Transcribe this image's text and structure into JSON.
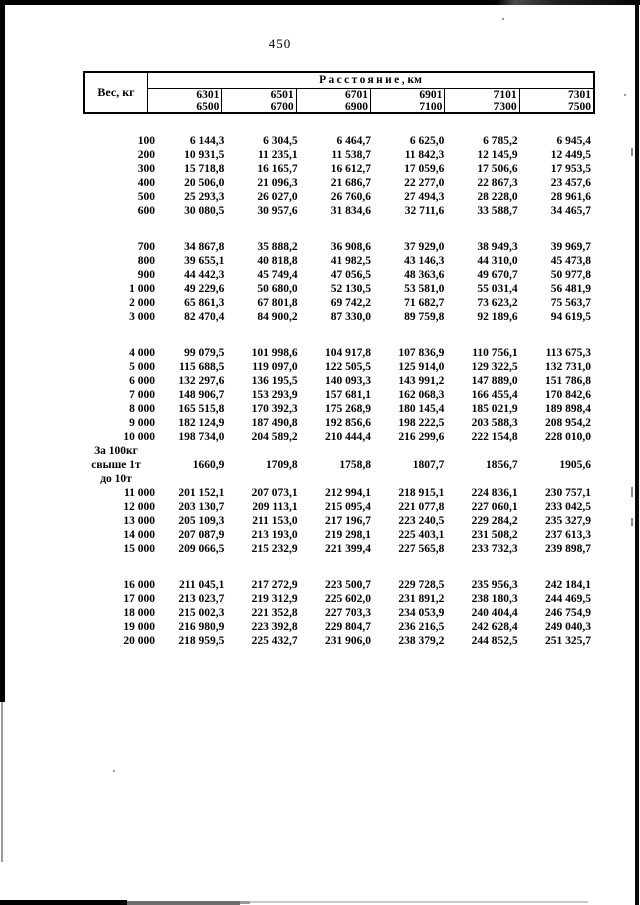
{
  "page": {
    "number": "450"
  },
  "table": {
    "weight_header": "Вес, кг",
    "distance_header": {
      "title": "Расстояние",
      "unit": ", км"
    },
    "columns": [
      {
        "from": "6301",
        "to": "6500"
      },
      {
        "from": "6501",
        "to": "6700"
      },
      {
        "from": "6701",
        "to": "6900"
      },
      {
        "from": "6901",
        "to": "7100"
      },
      {
        "from": "7101",
        "to": "7300"
      },
      {
        "from": "7301",
        "to": "7500"
      }
    ],
    "row_groups": [
      {
        "rows": [
          {
            "weight": "100",
            "values": [
              "6 144,3",
              "6 304,5",
              "6 464,7",
              "6 625,0",
              "6 785,2",
              "6 945,4"
            ]
          },
          {
            "weight": "200",
            "values": [
              "10 931,5",
              "11 235,1",
              "11 538,7",
              "11 842,3",
              "12 145,9",
              "12 449,5"
            ]
          },
          {
            "weight": "300",
            "values": [
              "15 718,8",
              "16 165,7",
              "16 612,7",
              "17 059,6",
              "17 506,6",
              "17 953,5"
            ]
          },
          {
            "weight": "400",
            "values": [
              "20 506,0",
              "21 096,3",
              "21 686,7",
              "22 277,0",
              "22 867,3",
              "23 457,6"
            ]
          },
          {
            "weight": "500",
            "values": [
              "25 293,3",
              "26 027,0",
              "26 760,6",
              "27 494,3",
              "28 228,0",
              "28 961,6"
            ]
          },
          {
            "weight": "600",
            "values": [
              "30 080,5",
              "30 957,6",
              "31 834,6",
              "32 711,6",
              "33 588,7",
              "34 465,7"
            ]
          }
        ]
      },
      {
        "rows": [
          {
            "weight": "700",
            "values": [
              "34 867,8",
              "35 888,2",
              "36 908,6",
              "37 929,0",
              "38 949,3",
              "39 969,7"
            ]
          },
          {
            "weight": "800",
            "values": [
              "39 655,1",
              "40 818,8",
              "41 982,5",
              "43 146,3",
              "44 310,0",
              "45 473,8"
            ]
          },
          {
            "weight": "900",
            "values": [
              "44 442,3",
              "45 749,4",
              "47 056,5",
              "48 363,6",
              "49 670,7",
              "50 977,8"
            ]
          },
          {
            "weight": "1 000",
            "values": [
              "49 229,6",
              "50 680,0",
              "52 130,5",
              "53 581,0",
              "55 031,4",
              "56 481,9"
            ]
          },
          {
            "weight": "2 000",
            "values": [
              "65 861,3",
              "67 801,8",
              "69 742,2",
              "71 682,7",
              "73 623,2",
              "75 563,7"
            ]
          },
          {
            "weight": "3 000",
            "values": [
              "82 470,4",
              "84 900,2",
              "87 330,0",
              "89 759,8",
              "92 189,6",
              "94 619,5"
            ]
          }
        ]
      },
      {
        "rows": [
          {
            "weight": "4 000",
            "values": [
              "99 079,5",
              "101 998,6",
              "104 917,8",
              "107 836,9",
              "110 756,1",
              "113 675,3"
            ]
          },
          {
            "weight": "5 000",
            "values": [
              "115 688,5",
              "119 097,0",
              "122 505,5",
              "125 914,0",
              "129 322,5",
              "132 731,0"
            ]
          },
          {
            "weight": "6 000",
            "values": [
              "132 297,6",
              "136 195,5",
              "140 093,3",
              "143 991,2",
              "147 889,0",
              "151 786,8"
            ]
          },
          {
            "weight": "7 000",
            "values": [
              "148 906,7",
              "153 293,9",
              "157 681,1",
              "162 068,3",
              "166 455,4",
              "170 842,6"
            ]
          },
          {
            "weight": "8 000",
            "values": [
              "165 515,8",
              "170 392,3",
              "175 268,9",
              "180 145,4",
              "185 021,9",
              "189 898,4"
            ]
          },
          {
            "weight": "9 000",
            "values": [
              "182 124,9",
              "187 490,8",
              "192 856,6",
              "198 222,5",
              "203 588,3",
              "208 954,2"
            ]
          },
          {
            "weight": "10 000",
            "values": [
              "198 734,0",
              "204 589,2",
              "210 444,4",
              "216 299,6",
              "222 154,8",
              "228 010,0"
            ]
          },
          {
            "label_lines": [
              "За 100кг",
              "свыше 1т",
              "до 10т"
            ],
            "values": [
              "1660,9",
              "1709,8",
              "1758,8",
              "1807,7",
              "1856,7",
              "1905,6"
            ]
          },
          {
            "weight": "11 000",
            "values": [
              "201 152,1",
              "207 073,1",
              "212 994,1",
              "218 915,1",
              "224 836,1",
              "230 757,1"
            ]
          },
          {
            "weight": "12 000",
            "values": [
              "203 130,7",
              "209 113,1",
              "215 095,4",
              "221 077,8",
              "227 060,1",
              "233 042,5"
            ]
          },
          {
            "weight": "13 000",
            "values": [
              "205 109,3",
              "211 153,0",
              "217 196,7",
              "223 240,5",
              "229 284,2",
              "235 327,9"
            ]
          },
          {
            "weight": "14 000",
            "values": [
              "207 087,9",
              "213 193,0",
              "219 298,1",
              "225 403,1",
              "231 508,2",
              "237 613,3"
            ]
          },
          {
            "weight": "15 000",
            "values": [
              "209 066,5",
              "215 232,9",
              "221 399,4",
              "227 565,8",
              "233 732,3",
              "239 898,7"
            ]
          }
        ]
      },
      {
        "rows": [
          {
            "weight": "16 000",
            "values": [
              "211 045,1",
              "217 272,9",
              "223 500,7",
              "229 728,5",
              "235 956,3",
              "242 184,1"
            ]
          },
          {
            "weight": "17 000",
            "values": [
              "213 023,7",
              "219 312,9",
              "225 602,0",
              "231 891,2",
              "238 180,3",
              "244 469,5"
            ]
          },
          {
            "weight": "18 000",
            "values": [
              "215 002,3",
              "221 352,8",
              "227 703,3",
              "234 053,9",
              "240 404,4",
              "246 754,9"
            ]
          },
          {
            "weight": "19 000",
            "values": [
              "216 980,9",
              "223 392,8",
              "229 804,7",
              "236 216,5",
              "242 628,4",
              "249 040,3"
            ]
          },
          {
            "weight": "20 000",
            "values": [
              "218 959,5",
              "225 432,7",
              "231 906,0",
              "238 379,2",
              "244 852,5",
              "251 325,7"
            ]
          }
        ]
      }
    ]
  }
}
